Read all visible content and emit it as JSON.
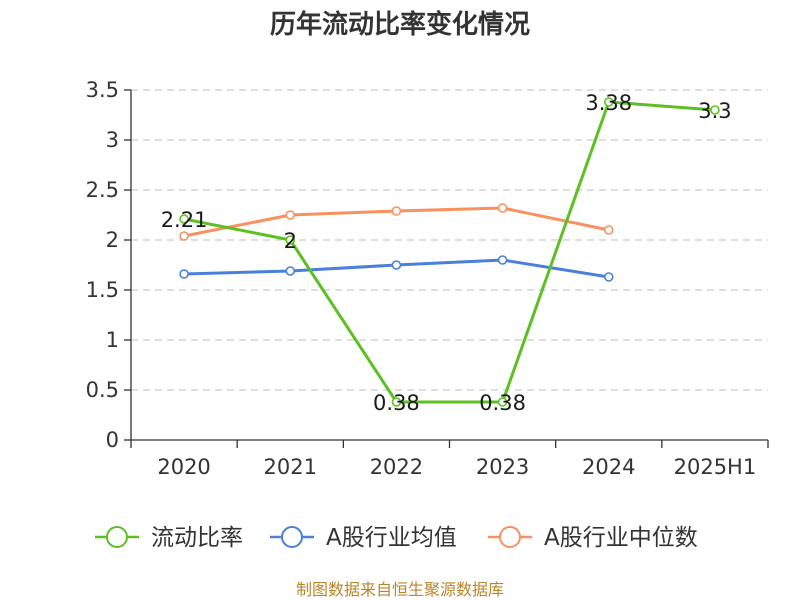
{
  "chart_data": {
    "type": "line",
    "title": "历年流动比率变化情况",
    "categories": [
      "2020",
      "2021",
      "2022",
      "2023",
      "2024",
      "2025H1"
    ],
    "ylim": [
      0,
      3.5
    ],
    "yticks": [
      "0",
      "0.5",
      "1",
      "1.5",
      "2",
      "2.5",
      "3",
      "3.5"
    ],
    "grid": true,
    "legend_position": "bottom",
    "series": [
      {
        "name": "流动比率",
        "color": "#5cc022",
        "values": [
          2.21,
          2,
          0.38,
          0.38,
          3.38,
          3.3
        ],
        "labels": [
          "2.21",
          "2",
          "0.38",
          "0.38",
          "3.38",
          "3.3"
        ]
      },
      {
        "name": "A股行业均值",
        "color": "#4a80da",
        "values": [
          1.66,
          1.69,
          1.75,
          1.8,
          1.63,
          null
        ]
      },
      {
        "name": "A股行业中位数",
        "color": "#f99060",
        "values": [
          2.04,
          2.25,
          2.29,
          2.32,
          2.1,
          null
        ]
      }
    ],
    "source": "制图数据来自恒生聚源数据库"
  }
}
